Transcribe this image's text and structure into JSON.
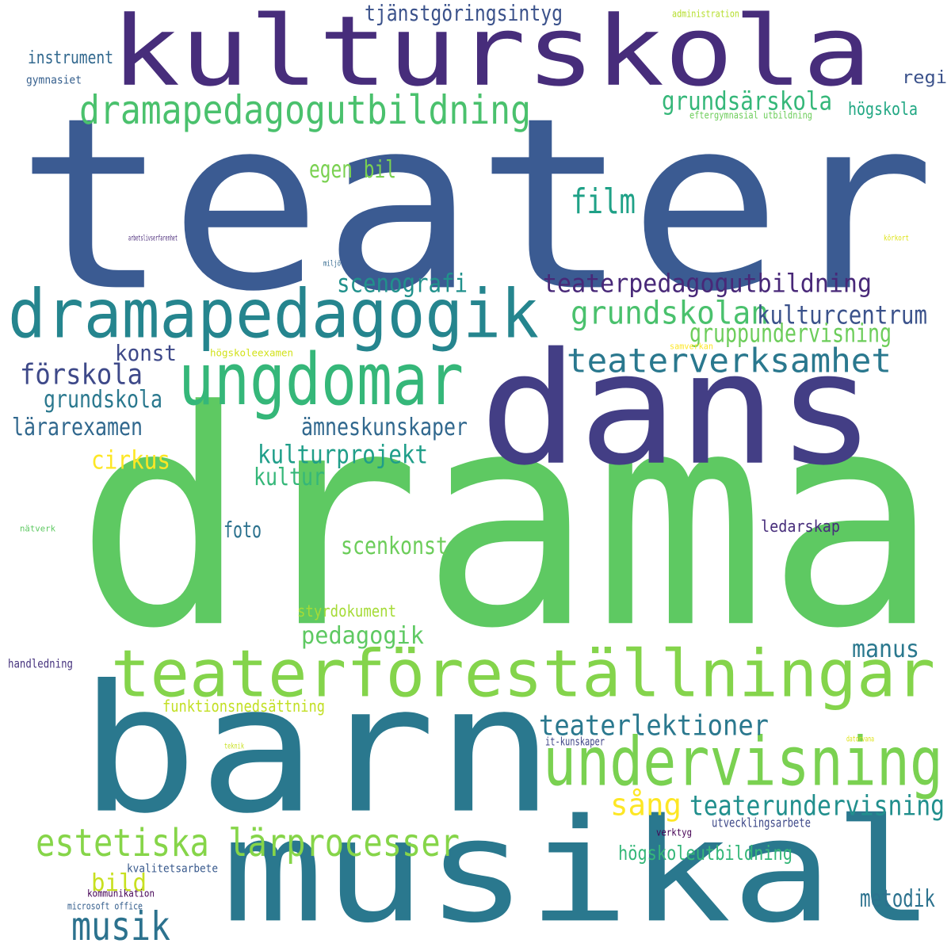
{
  "cloud": {
    "words": [
      {
        "text": "teater",
        "color": "#3b5b92"
      },
      {
        "text": "drama",
        "color": "#5ec962"
      },
      {
        "text": "barn",
        "color": "#2a788e"
      },
      {
        "text": "dans",
        "color": "#433e85"
      },
      {
        "text": "kulturskola",
        "color": "#472d7b"
      },
      {
        "text": "musikal",
        "color": "#2a788e"
      },
      {
        "text": "dramapedagogik",
        "color": "#25858e"
      },
      {
        "text": "ungdomar",
        "color": "#35b779"
      },
      {
        "text": "teaterföreställningar",
        "color": "#84d44b"
      },
      {
        "text": "undervisning",
        "color": "#7ad151"
      },
      {
        "text": "dramapedagogutbildning",
        "color": "#4ac16d"
      },
      {
        "text": "estetiska lärprocesser",
        "color": "#86d549"
      },
      {
        "text": "teaterverksamhet",
        "color": "#2a788e"
      },
      {
        "text": "musik",
        "color": "#2c728e"
      },
      {
        "text": "grundskolan",
        "color": "#4ac16d"
      },
      {
        "text": "teaterpedagogutbildning",
        "color": "#482878"
      },
      {
        "text": "film",
        "color": "#1fa187"
      },
      {
        "text": "grundsärskola",
        "color": "#35b779"
      },
      {
        "text": "kulturcentrum",
        "color": "#3b528b"
      },
      {
        "text": "teaterlektioner",
        "color": "#2a788e"
      },
      {
        "text": "teaterundervisning",
        "color": "#218f8d"
      },
      {
        "text": "förskola",
        "color": "#3e4989"
      },
      {
        "text": "kulturprojekt",
        "color": "#1f9e89"
      },
      {
        "text": "cirkus",
        "color": "#fde725"
      },
      {
        "text": "sång",
        "color": "#fde725"
      },
      {
        "text": "scenografi",
        "color": "#21918c"
      },
      {
        "text": "gruppundervisning",
        "color": "#6ccd5a"
      },
      {
        "text": "konst",
        "color": "#3e4989"
      },
      {
        "text": "grundskola",
        "color": "#2a788e"
      },
      {
        "text": "lärarexamen",
        "color": "#31688e"
      },
      {
        "text": "ämneskunskaper",
        "color": "#31688e"
      },
      {
        "text": "kultur",
        "color": "#35b779"
      },
      {
        "text": "tjänstgöringsintyg",
        "color": "#3b528b"
      },
      {
        "text": "scenkonst",
        "color": "#6ccd5a"
      },
      {
        "text": "pedagogik",
        "color": "#5ec962"
      },
      {
        "text": "manus",
        "color": "#2a788e"
      },
      {
        "text": "bild",
        "color": "#c8e020"
      },
      {
        "text": "metodik",
        "color": "#2c728e"
      },
      {
        "text": "högskoleutbildning",
        "color": "#35b779"
      },
      {
        "text": "egen bil",
        "color": "#7ad151"
      },
      {
        "text": "foto",
        "color": "#2c728e"
      },
      {
        "text": "instrument",
        "color": "#31688e"
      },
      {
        "text": "regi",
        "color": "#3b528b"
      },
      {
        "text": "högskola",
        "color": "#22a884"
      },
      {
        "text": "ledarskap",
        "color": "#472d7b"
      },
      {
        "text": "styrdokument",
        "color": "#a5db36"
      },
      {
        "text": "funktionsnedsättning",
        "color": "#c2df23"
      },
      {
        "text": "handledning",
        "color": "#46337e"
      },
      {
        "text": "utvecklingsarbete",
        "color": "#3e4989"
      },
      {
        "text": "it-kunskaper",
        "color": "#404688"
      },
      {
        "text": "gymnasiet",
        "color": "#355f8d"
      },
      {
        "text": "kvalitetsarbete",
        "color": "#38598c"
      },
      {
        "text": "verktyg",
        "color": "#440154"
      },
      {
        "text": "kommunikation",
        "color": "#440154"
      },
      {
        "text": "microsoft office",
        "color": "#355f8d"
      },
      {
        "text": "administration",
        "color": "#b5de2b"
      },
      {
        "text": "eftergymnasial utbildning",
        "color": "#6ccd5a"
      },
      {
        "text": "högskoleexamen",
        "color": "#d2e21b"
      },
      {
        "text": "samverkan",
        "color": "#fde725"
      },
      {
        "text": "nätverk",
        "color": "#5ec962"
      },
      {
        "text": "teknik",
        "color": "#c8e020"
      },
      {
        "text": "datorvana",
        "color": "#dde318"
      },
      {
        "text": "miljö",
        "color": "#31688e"
      },
      {
        "text": "arbetslivserfarenhet",
        "color": "#482878"
      },
      {
        "text": "körkort",
        "color": "#dde318"
      }
    ]
  }
}
